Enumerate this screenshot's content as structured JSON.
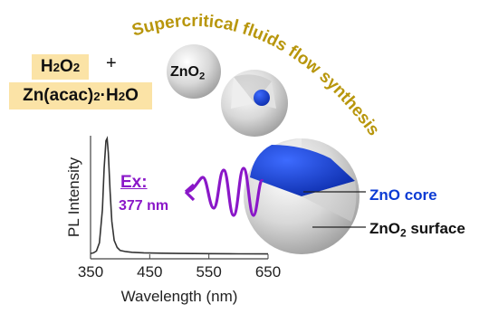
{
  "title_arc": "Supercritical fluids flow synthesis",
  "reagents": {
    "h2o2": {
      "base": "H",
      "sub1": "2",
      "mid": "O",
      "sub2": "2"
    },
    "plus": "+",
    "zn_complex": {
      "prefix": "Zn(acac)",
      "sub1": "2",
      "suffix": "·H",
      "sub2": "2",
      "end": "O"
    }
  },
  "particle_label": {
    "base": "ZnO",
    "sub": "2"
  },
  "core_label": "ZnO core",
  "surface_label": {
    "base": "ZnO",
    "sub": "2",
    "rest": " surface"
  },
  "excitation": {
    "label": "Ex:",
    "value": "377 nm"
  },
  "colors": {
    "title": "#b8960c",
    "reagent_box": "#fbe3a6",
    "core": "#1a45c8",
    "shell": "#dcdcdc",
    "excitation": "#8a17c8",
    "spectrum_line": "#333333"
  },
  "chart_data": {
    "type": "line",
    "xlabel": "Wavelength (nm)",
    "ylabel": "PL Intensity",
    "xlim": [
      350,
      650
    ],
    "xticks": [
      350,
      450,
      550,
      650
    ],
    "series": [
      {
        "x": [
          350,
          355,
          360,
          365,
          370,
          373,
          376,
          378,
          380,
          383,
          386,
          390,
          395,
          400,
          410,
          420,
          440,
          470,
          500,
          550,
          600,
          650
        ],
        "y": [
          0.03,
          0.035,
          0.05,
          0.12,
          0.4,
          0.75,
          0.98,
          1.0,
          0.88,
          0.55,
          0.3,
          0.14,
          0.08,
          0.055,
          0.045,
          0.04,
          0.035,
          0.032,
          0.03,
          0.028,
          0.027,
          0.026
        ]
      }
    ]
  }
}
